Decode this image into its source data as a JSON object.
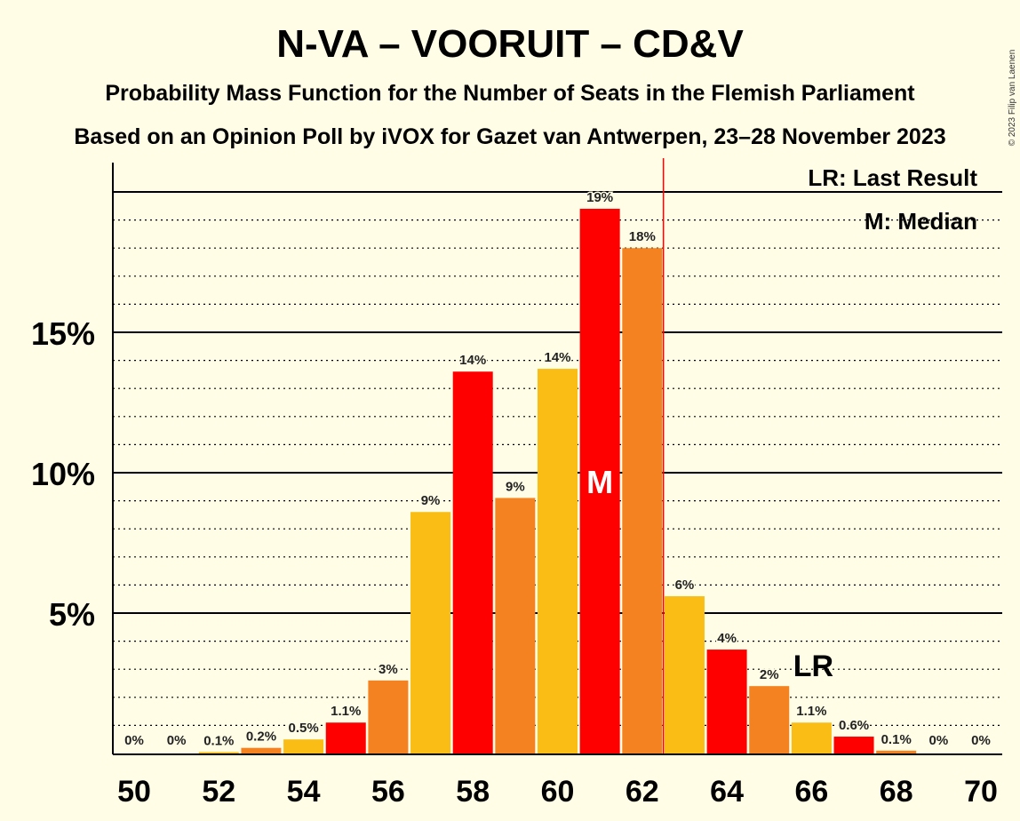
{
  "chart_data": {
    "type": "bar",
    "title": "N-VA – VOORUIT – CD&V",
    "subtitle": "Probability Mass Function for the Number of Seats in the Flemish Parliament",
    "subtitle2": "Based on an Opinion Poll by iVOX for Gazet van Antwerpen, 23–28 November 2023",
    "copyright": "© 2023 Filip van Laenen",
    "legend": {
      "last_result": "LR: Last Result",
      "median": "M: Median",
      "placement": "top-right"
    },
    "x": [
      50,
      51,
      52,
      53,
      54,
      55,
      56,
      57,
      58,
      59,
      60,
      61,
      62,
      63,
      64,
      65,
      66,
      67,
      68,
      69,
      70
    ],
    "values": [
      0,
      0,
      0.05,
      0.2,
      0.5,
      1.1,
      2.6,
      8.6,
      13.6,
      9.1,
      13.7,
      19.4,
      18.0,
      5.6,
      3.7,
      2.4,
      1.1,
      0.6,
      0.1,
      0,
      0
    ],
    "labels": [
      "0%",
      "0%",
      "0.1%",
      "0.2%",
      "0.5%",
      "1.1%",
      "3%",
      "9%",
      "14%",
      "9%",
      "14%",
      "19%",
      "18%",
      "6%",
      "4%",
      "2%",
      "1.1%",
      "0.6%",
      "0.1%",
      "0%",
      "0%"
    ],
    "x_ticks": [
      "50",
      "52",
      "54",
      "56",
      "58",
      "60",
      "62",
      "64",
      "66",
      "68",
      "70"
    ],
    "y_ticks": [
      "5%",
      "10%",
      "15%"
    ],
    "ylim": [
      0,
      21
    ],
    "median": 61,
    "median_label": "M",
    "last_result": 66,
    "last_result_label": "LR",
    "majority_line_after": 62,
    "grid": true,
    "colors": {
      "red": "#FF0000",
      "orange": "#F58220",
      "yellow": "#FABD15",
      "background": "#FFFDE6"
    },
    "bar_colors": [
      "yellow",
      "yellow",
      "yellow",
      "orange",
      "yellow",
      "red",
      "orange",
      "yellow",
      "red",
      "orange",
      "yellow",
      "red",
      "orange",
      "yellow",
      "red",
      "orange",
      "yellow",
      "red",
      "orange",
      "yellow",
      "red"
    ]
  }
}
